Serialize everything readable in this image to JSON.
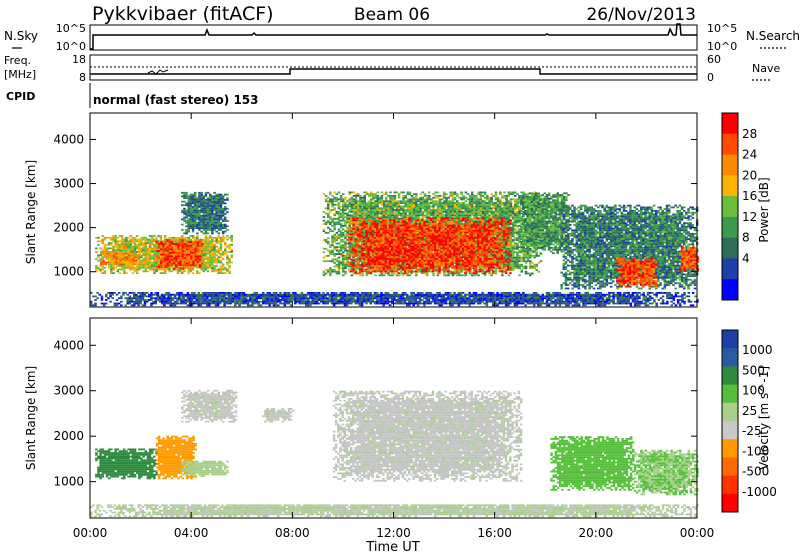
{
  "header": {
    "station": "Pykkvibaer (fitACF)",
    "beam": "Beam 06",
    "date": "26/Nov/2013"
  },
  "strip": {
    "nsky_label": "N.Sky",
    "nsky_ticks": [
      "10^5",
      "10^0"
    ],
    "nsearch_label": "N.Search",
    "nsearch_ticks": [
      "10^5",
      "10^0"
    ],
    "freq_label": "Freq.",
    "freq_unit": "[MHz]",
    "freq_ticks": [
      "18",
      "8"
    ],
    "nave_label": "Nave",
    "nave_ticks": [
      "60",
      "0"
    ],
    "cpid_label": "CPID",
    "cpid_text": "normal (fast stereo) 153"
  },
  "colors": {
    "power_scale": [
      "#0000ff",
      "#1e3fa8",
      "#2e6d5a",
      "#3a9a4e",
      "#6cbe3a",
      "#f7b500",
      "#ff8a00",
      "#ff4a00",
      "#ff0000"
    ],
    "velocity_scale": [
      "#1f3fa8",
      "#2a5aa0",
      "#2e8a3e",
      "#55c03a",
      "#a8d08a",
      "#c8c8c8",
      "#ff9a00",
      "#ff6a00",
      "#ff3300",
      "#ff0000"
    ],
    "ground_scatter": "#c4c4c4"
  },
  "chart_data": [
    {
      "type": "heatmap",
      "panel": "power",
      "x_ticks": [
        "00:00",
        "04:00",
        "08:00",
        "12:00",
        "16:00",
        "20:00",
        "00:00"
      ],
      "xlabel": "",
      "ylabel": "Slant Range [km]",
      "y_ticks": [
        "1000",
        "2000",
        "3000",
        "4000"
      ],
      "ylim": [
        200,
        4600
      ],
      "colorbar": {
        "label": "Power [dB]",
        "ticks": [
          "28",
          "24",
          "20",
          "16",
          "12",
          "8",
          "4"
        ],
        "range": [
          0,
          32
        ]
      },
      "regions": [
        {
          "t0": 0.2,
          "t1": 5.6,
          "r0": 950,
          "r1": 1800,
          "value": 18
        },
        {
          "t0": 2.6,
          "t1": 4.4,
          "r0": 1050,
          "r1": 1700,
          "value": 27
        },
        {
          "t0": 0.4,
          "t1": 2.0,
          "r0": 1150,
          "r1": 1450,
          "value": 22
        },
        {
          "t0": 3.6,
          "t1": 5.4,
          "r0": 1850,
          "r1": 2800,
          "value": 9
        },
        {
          "t0": 9.2,
          "t1": 17.8,
          "r0": 900,
          "r1": 2800,
          "value": 14
        },
        {
          "t0": 10.2,
          "t1": 16.6,
          "r0": 950,
          "r1": 2200,
          "value": 28
        },
        {
          "t0": 17.0,
          "t1": 18.9,
          "r0": 1400,
          "r1": 2800,
          "value": 12
        },
        {
          "t0": 18.6,
          "t1": 24.0,
          "r0": 600,
          "r1": 2500,
          "value": 10
        },
        {
          "t0": 20.8,
          "t1": 22.4,
          "r0": 650,
          "r1": 1300,
          "value": 27
        },
        {
          "t0": 23.3,
          "t1": 24.0,
          "r0": 1000,
          "r1": 1600,
          "value": 26
        },
        {
          "t0": 0.0,
          "t1": 24.0,
          "r0": 220,
          "r1": 520,
          "value": 6
        }
      ]
    },
    {
      "type": "heatmap",
      "panel": "velocity",
      "x_ticks": [
        "00:00",
        "04:00",
        "08:00",
        "12:00",
        "16:00",
        "20:00",
        "00:00"
      ],
      "xlabel": "Time UT",
      "ylabel": "Slant Range [km]",
      "y_ticks": [
        "1000",
        "2000",
        "3000",
        "4000"
      ],
      "ylim": [
        200,
        4600
      ],
      "colorbar": {
        "label": "Velocity [m s^-1]",
        "ticks": [
          "1000",
          "500",
          "100",
          "25",
          "-25",
          "-100",
          "-500",
          "-1000"
        ],
        "range": [
          -1000,
          1000
        ]
      },
      "regions": [
        {
          "t0": 0.2,
          "t1": 2.6,
          "r0": 1050,
          "r1": 1700,
          "value": 500
        },
        {
          "t0": 2.6,
          "t1": 4.2,
          "r0": 1050,
          "r1": 2000,
          "value": -300
        },
        {
          "t0": 3.6,
          "t1": 5.4,
          "r0": 1100,
          "r1": 1450,
          "value": 100
        },
        {
          "t0": 3.6,
          "t1": 5.8,
          "r0": 2300,
          "r1": 3000,
          "value": 0
        },
        {
          "t0": 6.8,
          "t1": 8.0,
          "r0": 2300,
          "r1": 2600,
          "value": 0
        },
        {
          "t0": 9.6,
          "t1": 17.0,
          "r0": 1000,
          "r1": 3000,
          "value": 0
        },
        {
          "t0": 18.2,
          "t1": 21.5,
          "r0": 800,
          "r1": 2000,
          "value": 300
        },
        {
          "t0": 21.5,
          "t1": 24.0,
          "r0": 700,
          "r1": 1700,
          "value": 200
        },
        {
          "t0": 0.0,
          "t1": 24.0,
          "r0": 220,
          "r1": 500,
          "value": 50
        }
      ]
    }
  ]
}
